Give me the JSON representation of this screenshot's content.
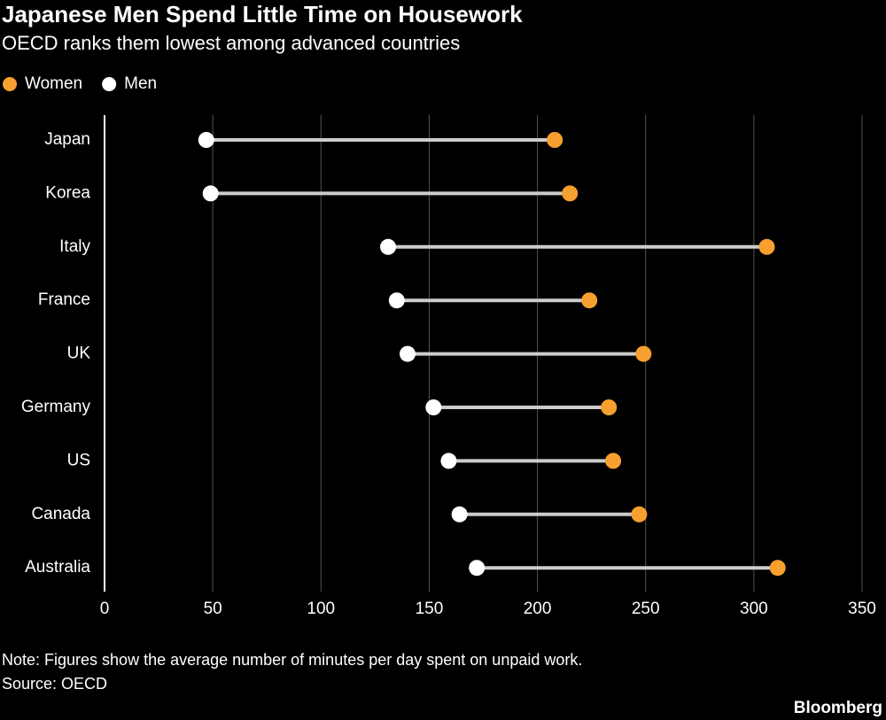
{
  "chart_data": {
    "type": "dumbbell",
    "title": "Japanese Men Spend Little Time on Housework",
    "subtitle": "OECD ranks them lowest among advanced countries",
    "categories": [
      "Japan",
      "Korea",
      "Italy",
      "France",
      "UK",
      "Germany",
      "US",
      "Canada",
      "Australia"
    ],
    "series": [
      {
        "name": "Women",
        "color": "#f7a030",
        "values": [
          208,
          215,
          306,
          224,
          249,
          233,
          235,
          247,
          311
        ]
      },
      {
        "name": "Men",
        "color": "#ffffff",
        "values": [
          47,
          49,
          131,
          135,
          140,
          152,
          159,
          164,
          172
        ]
      }
    ],
    "xlim": [
      0,
      350
    ],
    "xticks": [
      0,
      50,
      100,
      150,
      200,
      250,
      300,
      350
    ],
    "grid": true,
    "note": "Note: Figures show the average number of minutes per day spent on unpaid work.",
    "source": "Source: OECD",
    "brand": "Bloomberg"
  }
}
